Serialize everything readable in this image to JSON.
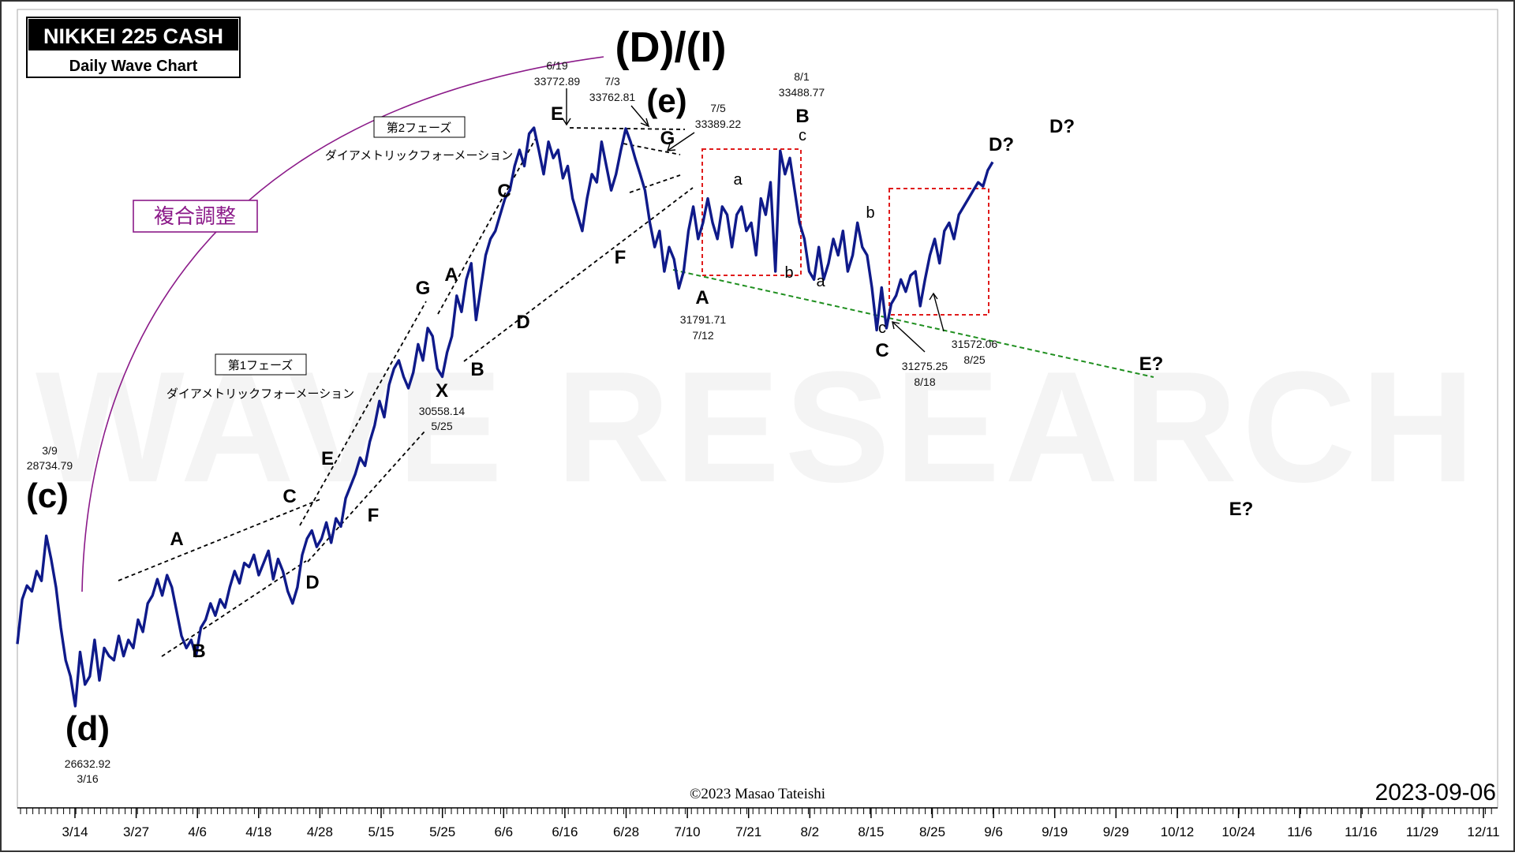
{
  "chart_data": {
    "type": "line",
    "title": "NIKKEI 225 CASH",
    "subtitle": "Daily Wave Chart",
    "date_label": "2023-09-06",
    "copyright": "©2023 Masao Tateishi",
    "watermark": "WAVE RESEARCH",
    "x_ticks": [
      "3/14",
      "3/27",
      "4/6",
      "4/18",
      "4/28",
      "5/15",
      "5/25",
      "6/6",
      "6/16",
      "6/28",
      "7/10",
      "7/21",
      "8/2",
      "8/15",
      "8/25",
      "9/6",
      "9/19",
      "9/29",
      "10/12",
      "10/24",
      "11/6",
      "11/16",
      "11/29",
      "12/11"
    ],
    "series": [
      {
        "color": "#0f1a8a",
        "values": [
          27400,
          27950,
          28120,
          28050,
          28300,
          28180,
          28734.79,
          28450,
          28100,
          27600,
          27200,
          27000,
          26632.92,
          27300,
          26900,
          27000,
          27450,
          26950,
          27350,
          27250,
          27200,
          27500,
          27250,
          27450,
          27350,
          27700,
          27550,
          27900,
          28000,
          28200,
          28000,
          28250,
          28100,
          27800,
          27500,
          27350,
          27450,
          27250,
          27600,
          27700,
          27900,
          27750,
          27950,
          27850,
          28100,
          28300,
          28150,
          28400,
          28350,
          28500,
          28250,
          28400,
          28550,
          28200,
          28450,
          28300,
          28050,
          27900,
          28100,
          28500,
          28700,
          28800,
          28600,
          28700,
          28900,
          28650,
          28950,
          28850,
          29200,
          29350,
          29500,
          29700,
          29600,
          29900,
          30100,
          30400,
          30200,
          30600,
          30800,
          30900,
          30700,
          30558.14,
          30750,
          31100,
          30900,
          31300,
          31200,
          30800,
          30700,
          31000,
          31200,
          31700,
          31500,
          31900,
          32100,
          31400,
          31800,
          32200,
          32400,
          32500,
          32700,
          32900,
          33000,
          33300,
          33500,
          33300,
          33700,
          33772.89,
          33500,
          33200,
          33600,
          33400,
          33500,
          33150,
          33300,
          32900,
          32700,
          32500,
          32900,
          33200,
          33100,
          33600,
          33300,
          33000,
          33200,
          33500,
          33762.81,
          33600,
          33389.22,
          33200,
          33000,
          32600,
          32300,
          32500,
          32000,
          32300,
          32150,
          31791.71,
          32000,
          32500,
          32800,
          32400,
          32600,
          32900,
          32600,
          32400,
          32800,
          32700,
          32300,
          32700,
          32800,
          32500,
          32600,
          32200,
          32900,
          32700,
          33100,
          32000,
          33488.77,
          33200,
          33400,
          33000,
          32600,
          32400,
          32000,
          31900,
          32300,
          31900,
          32100,
          32400,
          32200,
          32500,
          32000,
          32200,
          32600,
          32300,
          32200,
          31800,
          31275.25,
          31800,
          31300,
          31600,
          31700,
          31900,
          31750,
          31950,
          32000,
          31572.06,
          31900,
          32200,
          32400,
          32100,
          32500,
          32600,
          32400,
          32700,
          32800,
          32900,
          33000,
          33100,
          33050,
          33250,
          33350
        ]
      }
    ],
    "price_labels": [
      {
        "date": "3/9",
        "value": "28734.79"
      },
      {
        "date": "3/16",
        "value": "26632.92"
      },
      {
        "date": "5/25",
        "value": "30558.14"
      },
      {
        "date": "6/19",
        "value": "33772.89"
      },
      {
        "date": "7/3",
        "value": "33762.81"
      },
      {
        "date": "7/5",
        "value": "33389.22"
      },
      {
        "date": "7/12",
        "value": "31791.71"
      },
      {
        "date": "8/1",
        "value": "33488.77"
      },
      {
        "date": "8/18",
        "value": "31275.25"
      },
      {
        "date": "8/25",
        "value": "31572.06"
      }
    ],
    "phase_boxes": [
      "第1フェーズ",
      "第2フェーズ"
    ],
    "formation_labels": [
      "ダイアメトリックフォーメーション",
      "ダイアメトリックフォーメーション"
    ],
    "complex_label": "複合調整",
    "wave_labels_big": [
      "(c)",
      "(d)",
      "(D)/(I)",
      "(e)"
    ],
    "wave_labels": [
      "A",
      "B",
      "C",
      "D",
      "E",
      "F",
      "G",
      "X",
      "A",
      "B",
      "C",
      "D",
      "E",
      "F",
      "G",
      "A",
      "B",
      "C",
      "a",
      "b",
      "c",
      "a",
      "b",
      "c",
      "D?",
      "D?",
      "E?",
      "E?"
    ]
  }
}
